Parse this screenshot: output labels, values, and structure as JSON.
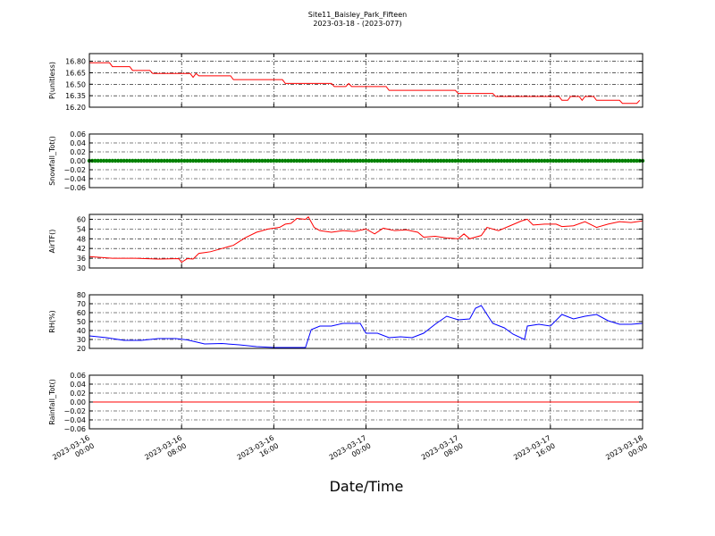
{
  "figure": {
    "title": "Site11_Baisley_Park_Fifteen",
    "subtitle": "2023-03-18 - (2023-077)",
    "xlabel": "Date/Time",
    "x_ticks": [
      {
        "line1": "2023-03-16",
        "line2": "00:00"
      },
      {
        "line1": "2023-03-16",
        "line2": "08:00"
      },
      {
        "line1": "2023-03-16",
        "line2": "16:00"
      },
      {
        "line1": "2023-03-17",
        "line2": "00:00"
      },
      {
        "line1": "2023-03-17",
        "line2": "08:00"
      },
      {
        "line1": "2023-03-17",
        "line2": "16:00"
      },
      {
        "line1": "2023-03-18",
        "line2": "00:00"
      }
    ]
  },
  "chart_data": [
    {
      "type": "line",
      "ylabel": "P(unitless)",
      "xlim": [
        "2023-03-16 00:00",
        "2023-03-18 00:00"
      ],
      "ylim": [
        16.2,
        16.9
      ],
      "yticks": [
        "16.80",
        "16.65",
        "16.50",
        "16.35",
        "16.20"
      ],
      "ytick_values": [
        16.8,
        16.65,
        16.5,
        16.35,
        16.2
      ],
      "grid": true,
      "color": "#ff0000",
      "points": [
        [
          "2023-03-16 00:00",
          16.78
        ],
        [
          "2023-03-16 01:45",
          16.78
        ],
        [
          "2023-03-16 02:00",
          16.73
        ],
        [
          "2023-03-16 03:30",
          16.73
        ],
        [
          "2023-03-16 03:45",
          16.68
        ],
        [
          "2023-03-16 05:15",
          16.68
        ],
        [
          "2023-03-16 05:30",
          16.64
        ],
        [
          "2023-03-16 08:45",
          16.64
        ],
        [
          "2023-03-16 09:00",
          16.59
        ],
        [
          "2023-03-16 09:15",
          16.64
        ],
        [
          "2023-03-16 09:30",
          16.61
        ],
        [
          "2023-03-16 12:15",
          16.61
        ],
        [
          "2023-03-16 12:30",
          16.56
        ],
        [
          "2023-03-16 16:45",
          16.56
        ],
        [
          "2023-03-16 17:00",
          16.51
        ],
        [
          "2023-03-16 21:00",
          16.51
        ],
        [
          "2023-03-16 21:15",
          16.47
        ],
        [
          "2023-03-16 22:15",
          16.47
        ],
        [
          "2023-03-16 22:30",
          16.51
        ],
        [
          "2023-03-16 22:45",
          16.47
        ],
        [
          "2023-03-17 01:45",
          16.47
        ],
        [
          "2023-03-17 02:00",
          16.42
        ],
        [
          "2023-03-17 07:45",
          16.42
        ],
        [
          "2023-03-17 08:00",
          16.38
        ],
        [
          "2023-03-17 11:00",
          16.38
        ],
        [
          "2023-03-17 11:15",
          16.34
        ],
        [
          "2023-03-17 16:45",
          16.34
        ],
        [
          "2023-03-17 17:00",
          16.29
        ],
        [
          "2023-03-17 17:30",
          16.29
        ],
        [
          "2023-03-17 17:45",
          16.34
        ],
        [
          "2023-03-17 18:30",
          16.34
        ],
        [
          "2023-03-17 18:45",
          16.29
        ],
        [
          "2023-03-17 19:00",
          16.34
        ],
        [
          "2023-03-17 19:45",
          16.34
        ],
        [
          "2023-03-17 20:00",
          16.29
        ],
        [
          "2023-03-17 22:00",
          16.29
        ],
        [
          "2023-03-17 22:15",
          16.25
        ],
        [
          "2023-03-17 23:30",
          16.25
        ],
        [
          "2023-03-17 23:45",
          16.29
        ]
      ]
    },
    {
      "type": "scatter",
      "ylabel": "Snowfall_Tot()",
      "xlim": [
        "2023-03-16 00:00",
        "2023-03-18 00:00"
      ],
      "ylim": [
        -0.06,
        0.06
      ],
      "yticks": [
        "0.06",
        "0.04",
        "0.02",
        "0.00",
        "−0.02",
        "−0.04",
        "−0.06"
      ],
      "ytick_values": [
        0.06,
        0.04,
        0.02,
        0.0,
        -0.02,
        -0.04,
        -0.06
      ],
      "grid": true,
      "color": "#008000",
      "constant_value": 0.0,
      "x_start": "2023-03-16 00:00",
      "x_end": "2023-03-18 00:00",
      "interval_minutes": 15
    },
    {
      "type": "line",
      "ylabel": "AirTF()",
      "xlim": [
        "2023-03-16 00:00",
        "2023-03-18 00:00"
      ],
      "ylim": [
        30,
        63
      ],
      "yticks": [
        "60",
        "54",
        "48",
        "42",
        "36",
        "30"
      ],
      "ytick_values": [
        60,
        54,
        48,
        42,
        36,
        30
      ],
      "grid": true,
      "color": "#ff0000",
      "points": [
        [
          "2023-03-16 00:00",
          37.0
        ],
        [
          "2023-03-16 02:00",
          36.0
        ],
        [
          "2023-03-16 04:00",
          36.0
        ],
        [
          "2023-03-16 06:00",
          35.5
        ],
        [
          "2023-03-16 07:45",
          35.8
        ],
        [
          "2023-03-16 08:00",
          33.5
        ],
        [
          "2023-03-16 08:30",
          35.8
        ],
        [
          "2023-03-16 09:00",
          35.5
        ],
        [
          "2023-03-16 09:30",
          39.0
        ],
        [
          "2023-03-16 10:00",
          39.5
        ],
        [
          "2023-03-16 10:30",
          40.0
        ],
        [
          "2023-03-16 11:30",
          42.0
        ],
        [
          "2023-03-16 12:30",
          44.0
        ],
        [
          "2023-03-16 13:30",
          48.5
        ],
        [
          "2023-03-16 14:30",
          52.0
        ],
        [
          "2023-03-16 15:30",
          54.0
        ],
        [
          "2023-03-16 16:30",
          55.0
        ],
        [
          "2023-03-16 17:00",
          57.0
        ],
        [
          "2023-03-16 17:30",
          57.5
        ],
        [
          "2023-03-16 18:00",
          60.5
        ],
        [
          "2023-03-16 18:45",
          60.0
        ],
        [
          "2023-03-16 19:00",
          61.5
        ],
        [
          "2023-03-16 19:30",
          55.0
        ],
        [
          "2023-03-16 20:00",
          53.0
        ],
        [
          "2023-03-16 21:00",
          52.0
        ],
        [
          "2023-03-16 22:00",
          53.0
        ],
        [
          "2023-03-16 23:00",
          52.5
        ],
        [
          "2023-03-17 00:00",
          54.0
        ],
        [
          "2023-03-17 00:45",
          51.0
        ],
        [
          "2023-03-17 01:30",
          54.5
        ],
        [
          "2023-03-17 02:30",
          53.0
        ],
        [
          "2023-03-17 03:30",
          53.5
        ],
        [
          "2023-03-17 04:30",
          52.0
        ],
        [
          "2023-03-17 05:00",
          49.0
        ],
        [
          "2023-03-17 06:00",
          49.5
        ],
        [
          "2023-03-17 07:00",
          48.5
        ],
        [
          "2023-03-17 08:00",
          48.0
        ],
        [
          "2023-03-17 08:30",
          51.0
        ],
        [
          "2023-03-17 09:00",
          48.0
        ],
        [
          "2023-03-17 10:00",
          50.0
        ],
        [
          "2023-03-17 10:30",
          55.0
        ],
        [
          "2023-03-17 11:30",
          53.0
        ],
        [
          "2023-03-17 12:30",
          56.0
        ],
        [
          "2023-03-17 13:30",
          59.0
        ],
        [
          "2023-03-17 14:00",
          60.0
        ],
        [
          "2023-03-17 14:30",
          56.5
        ],
        [
          "2023-03-17 15:30",
          57.0
        ],
        [
          "2023-03-17 16:30",
          57.0
        ],
        [
          "2023-03-17 17:00",
          55.5
        ],
        [
          "2023-03-17 18:00",
          56.0
        ],
        [
          "2023-03-17 19:00",
          58.5
        ],
        [
          "2023-03-17 20:00",
          55.0
        ],
        [
          "2023-03-17 21:00",
          57.0
        ],
        [
          "2023-03-17 22:00",
          58.5
        ],
        [
          "2023-03-17 23:00",
          58.0
        ],
        [
          "2023-03-18 00:00",
          59.0
        ]
      ]
    },
    {
      "type": "line",
      "ylabel": "RH(%)",
      "xlim": [
        "2023-03-16 00:00",
        "2023-03-18 00:00"
      ],
      "ylim": [
        20,
        80
      ],
      "yticks": [
        "80",
        "70",
        "60",
        "50",
        "40",
        "30",
        "20"
      ],
      "ytick_values": [
        80,
        70,
        60,
        50,
        40,
        30,
        20
      ],
      "grid": true,
      "color": "#0000ff",
      "points": [
        [
          "2023-03-16 00:00",
          34.0
        ],
        [
          "2023-03-16 01:30",
          32.0
        ],
        [
          "2023-03-16 03:00",
          29.0
        ],
        [
          "2023-03-16 04:30",
          29.0
        ],
        [
          "2023-03-16 06:00",
          31.0
        ],
        [
          "2023-03-16 07:30",
          31.0
        ],
        [
          "2023-03-16 08:30",
          29.5
        ],
        [
          "2023-03-16 10:00",
          25.0
        ],
        [
          "2023-03-16 11:30",
          25.5
        ],
        [
          "2023-03-16 13:00",
          24.0
        ],
        [
          "2023-03-16 14:30",
          22.0
        ],
        [
          "2023-03-16 16:00",
          21.0
        ],
        [
          "2023-03-16 17:30",
          21.0
        ],
        [
          "2023-03-16 18:45",
          21.0
        ],
        [
          "2023-03-16 19:15",
          41.0
        ],
        [
          "2023-03-16 20:00",
          45.0
        ],
        [
          "2023-03-16 21:00",
          45.0
        ],
        [
          "2023-03-16 22:00",
          48.0
        ],
        [
          "2023-03-16 23:30",
          48.0
        ],
        [
          "2023-03-17 00:00",
          37.0
        ],
        [
          "2023-03-17 01:00",
          37.0
        ],
        [
          "2023-03-17 02:00",
          32.0
        ],
        [
          "2023-03-17 03:00",
          33.0
        ],
        [
          "2023-03-17 04:00",
          32.0
        ],
        [
          "2023-03-17 05:00",
          37.0
        ],
        [
          "2023-03-17 06:00",
          47.0
        ],
        [
          "2023-03-17 07:00",
          56.0
        ],
        [
          "2023-03-17 08:00",
          52.0
        ],
        [
          "2023-03-17 09:00",
          53.0
        ],
        [
          "2023-03-17 09:30",
          65.0
        ],
        [
          "2023-03-17 10:00",
          68.0
        ],
        [
          "2023-03-17 11:00",
          48.0
        ],
        [
          "2023-03-17 12:00",
          43.0
        ],
        [
          "2023-03-17 12:45",
          36.0
        ],
        [
          "2023-03-17 13:45",
          30.0
        ],
        [
          "2023-03-17 14:00",
          45.0
        ],
        [
          "2023-03-17 15:00",
          47.0
        ],
        [
          "2023-03-17 16:00",
          45.0
        ],
        [
          "2023-03-17 17:00",
          58.0
        ],
        [
          "2023-03-17 18:00",
          53.0
        ],
        [
          "2023-03-17 19:00",
          56.0
        ],
        [
          "2023-03-17 20:00",
          58.0
        ],
        [
          "2023-03-17 21:00",
          51.0
        ],
        [
          "2023-03-17 22:00",
          47.0
        ],
        [
          "2023-03-17 23:00",
          47.0
        ],
        [
          "2023-03-18 00:00",
          48.0
        ]
      ]
    },
    {
      "type": "line",
      "ylabel": "Rainfall_Tot()",
      "xlim": [
        "2023-03-16 00:00",
        "2023-03-18 00:00"
      ],
      "ylim": [
        -0.06,
        0.06
      ],
      "yticks": [
        "0.06",
        "0.04",
        "0.02",
        "0.00",
        "−0.02",
        "−0.04",
        "−0.06"
      ],
      "ytick_values": [
        0.06,
        0.04,
        0.02,
        0.0,
        -0.02,
        -0.04,
        -0.06
      ],
      "grid": true,
      "color": "#ff0000",
      "points": [
        [
          "2023-03-16 00:00",
          0.0
        ],
        [
          "2023-03-18 00:00",
          0.0
        ]
      ]
    }
  ]
}
